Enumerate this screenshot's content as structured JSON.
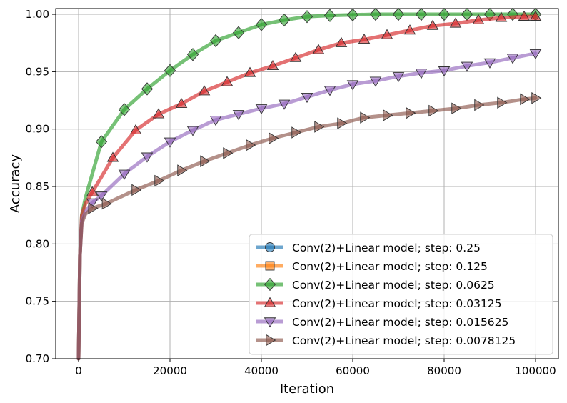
{
  "chart_data": {
    "type": "line",
    "title": "",
    "xlabel": "Iteration",
    "ylabel": "Accuracy",
    "xlim": [
      -5000,
      105000
    ],
    "ylim": [
      0.7,
      1.005
    ],
    "grid": true,
    "legend_position": "bottom-right",
    "x_ticks": [
      0,
      20000,
      40000,
      60000,
      80000,
      100000
    ],
    "x_tick_labels": [
      "0",
      "20000",
      "40000",
      "60000",
      "80000",
      "100000"
    ],
    "y_ticks": [
      0.7,
      0.75,
      0.8,
      0.85,
      0.9,
      0.95,
      1.0
    ],
    "y_tick_labels": [
      "0.70",
      "0.75",
      "0.80",
      "0.85",
      "0.90",
      "0.95",
      "1.00"
    ],
    "series": [
      {
        "name": "Conv(2)+Linear model; step: 0.25",
        "color": "#1f77b4",
        "marker": "circle",
        "x": [],
        "y": []
      },
      {
        "name": "Conv(2)+Linear model; step: 0.125",
        "color": "#ff7f0e",
        "marker": "square",
        "x": [],
        "y": []
      },
      {
        "name": "Conv(2)+Linear model; step: 0.0625",
        "color": "#2ca02c",
        "marker": "diamond",
        "x": [
          0,
          300,
          700,
          1500,
          5000,
          10000,
          15000,
          20000,
          25000,
          30000,
          35000,
          40000,
          45000,
          50000,
          55000,
          60000,
          65000,
          70000,
          75000,
          80000,
          85000,
          90000,
          95000,
          100000
        ],
        "y": [
          0.7,
          0.79,
          0.825,
          0.84,
          0.889,
          0.917,
          0.935,
          0.951,
          0.965,
          0.977,
          0.984,
          0.991,
          0.995,
          0.998,
          0.999,
          0.9995,
          1.0,
          1.0,
          1.0,
          1.0,
          1.0,
          1.0,
          1.0,
          1.0
        ]
      },
      {
        "name": "Conv(2)+Linear model; step: 0.03125",
        "color": "#d62728",
        "marker": "triangle-up",
        "x": [
          0,
          300,
          700,
          1500,
          3000,
          7500,
          12500,
          17500,
          22500,
          27500,
          32500,
          37500,
          42500,
          47500,
          52500,
          57500,
          62500,
          67500,
          72500,
          77500,
          82500,
          87500,
          92500,
          97500,
          100000
        ],
        "y": [
          0.7,
          0.79,
          0.825,
          0.835,
          0.845,
          0.875,
          0.899,
          0.913,
          0.922,
          0.933,
          0.941,
          0.949,
          0.955,
          0.962,
          0.969,
          0.975,
          0.978,
          0.982,
          0.986,
          0.99,
          0.992,
          0.995,
          0.997,
          0.998,
          0.998
        ]
      },
      {
        "name": "Conv(2)+Linear model; step: 0.015625",
        "color": "#9467bd",
        "marker": "triangle-down",
        "x": [
          0,
          300,
          700,
          1500,
          3000,
          5000,
          10000,
          15000,
          20000,
          25000,
          30000,
          35000,
          40000,
          45000,
          50000,
          55000,
          60000,
          65000,
          70000,
          75000,
          80000,
          85000,
          90000,
          95000,
          100000
        ],
        "y": [
          0.7,
          0.79,
          0.82,
          0.828,
          0.836,
          0.842,
          0.861,
          0.876,
          0.889,
          0.899,
          0.908,
          0.913,
          0.918,
          0.922,
          0.928,
          0.934,
          0.939,
          0.942,
          0.946,
          0.949,
          0.951,
          0.955,
          0.958,
          0.962,
          0.966
        ]
      },
      {
        "name": "Conv(2)+Linear model; step: 0.0078125",
        "color": "#8c564b",
        "marker": "triangle-right",
        "x": [
          0,
          300,
          700,
          1500,
          3000,
          6000,
          12500,
          17500,
          22500,
          27500,
          32500,
          37500,
          42500,
          47500,
          52500,
          57500,
          62500,
          67500,
          72500,
          77500,
          82500,
          87500,
          92500,
          97500,
          100000
        ],
        "y": [
          0.7,
          0.79,
          0.818,
          0.826,
          0.831,
          0.835,
          0.847,
          0.855,
          0.864,
          0.872,
          0.879,
          0.886,
          0.892,
          0.897,
          0.902,
          0.905,
          0.91,
          0.912,
          0.914,
          0.916,
          0.918,
          0.921,
          0.923,
          0.926,
          0.927
        ]
      }
    ]
  }
}
